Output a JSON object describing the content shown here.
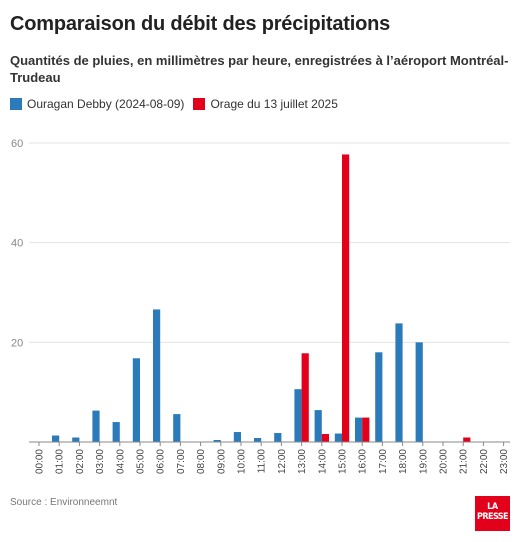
{
  "chart_data": {
    "type": "bar",
    "title": "Comparaison du débit des précipitations",
    "subtitle": "Quantités de pluies, en millimètres par heure, enregistrées à l’aéroport Montréal-Trudeau",
    "categories": [
      "00:00",
      "01:00",
      "02:00",
      "03:00",
      "04:00",
      "05:00",
      "06:00",
      "07:00",
      "08:00",
      "09:00",
      "10:00",
      "11:00",
      "12:00",
      "13:00",
      "14:00",
      "15:00",
      "16:00",
      "17:00",
      "18:00",
      "19:00",
      "20:00",
      "21:00",
      "22:00",
      "23:00"
    ],
    "series": [
      {
        "name": "Ouragan Debby (2024-08-09)",
        "color": "#2b7bba",
        "values": [
          0,
          1.3,
          0.9,
          6.3,
          4.0,
          16.8,
          26.6,
          5.6,
          0,
          0.4,
          2.0,
          0.8,
          1.8,
          10.6,
          6.4,
          1.7,
          4.9,
          18.0,
          23.8,
          20.0,
          0,
          0,
          0,
          0
        ]
      },
      {
        "name": "Orage du 13 juillet 2025",
        "color": "#e2001a",
        "values": [
          0,
          0,
          0,
          0,
          0,
          0,
          0,
          0,
          0,
          0,
          0,
          0,
          0,
          17.8,
          1.6,
          57.7,
          4.9,
          0,
          0,
          0,
          0,
          0.9,
          0,
          0
        ]
      }
    ],
    "xlabel": "",
    "ylabel": "",
    "ylim": [
      0,
      60
    ],
    "yticks": [
      20,
      40,
      60
    ],
    "grid": true,
    "legend_position": "top-left"
  },
  "footer": {
    "source": "Source : Environneemnt"
  },
  "logo": {
    "line1": "LA",
    "line2": "PRESSE",
    "color": "#e2001a"
  }
}
